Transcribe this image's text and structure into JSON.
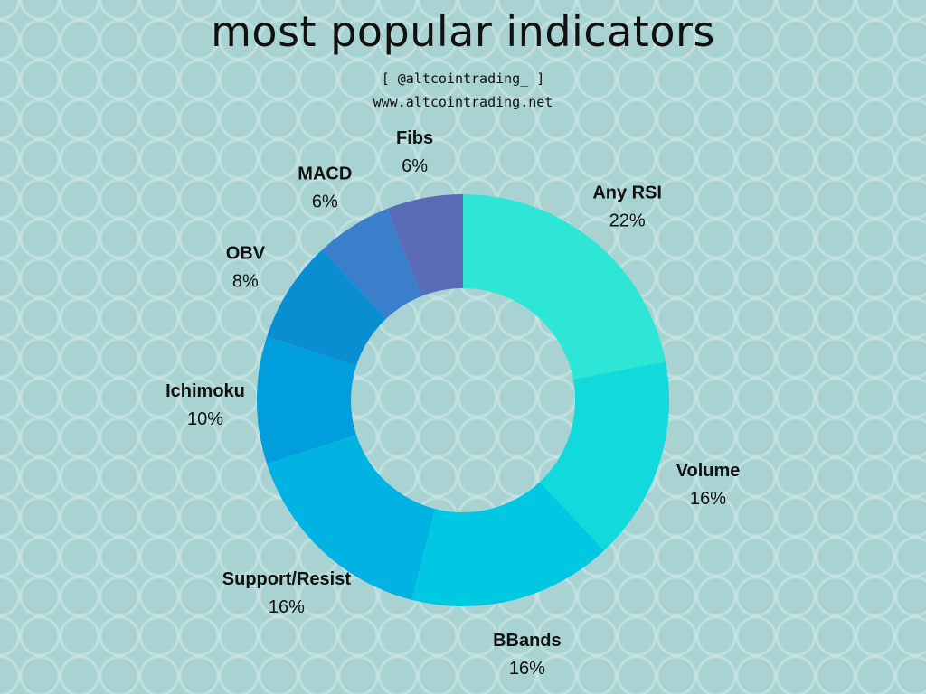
{
  "header": {
    "title": "most popular indicators",
    "handle": "[ @altcointrading_ ]",
    "website": "www.altcointrading.net"
  },
  "chart_data": {
    "type": "pie",
    "title": "most popular indicators",
    "donut": true,
    "slices": [
      {
        "label": "Any RSI",
        "value": 22,
        "pct_label": "22%",
        "color": "#2ee6d6"
      },
      {
        "label": "Volume",
        "value": 16,
        "pct_label": "16%",
        "color": "#12d9dc"
      },
      {
        "label": "BBands",
        "value": 16,
        "pct_label": "16%",
        "color": "#00c8e2"
      },
      {
        "label": "Support/Resist",
        "value": 16,
        "pct_label": "16%",
        "color": "#00b3e2"
      },
      {
        "label": "Ichimoku",
        "value": 10,
        "pct_label": "10%",
        "color": "#009edc"
      },
      {
        "label": "OBV",
        "value": 8,
        "pct_label": "8%",
        "color": "#0a8ed2"
      },
      {
        "label": "MACD",
        "value": 6,
        "pct_label": "6%",
        "color": "#3a7fcb"
      },
      {
        "label": "Fibs",
        "value": 6,
        "pct_label": "6%",
        "color": "#5a6bb8"
      }
    ]
  }
}
